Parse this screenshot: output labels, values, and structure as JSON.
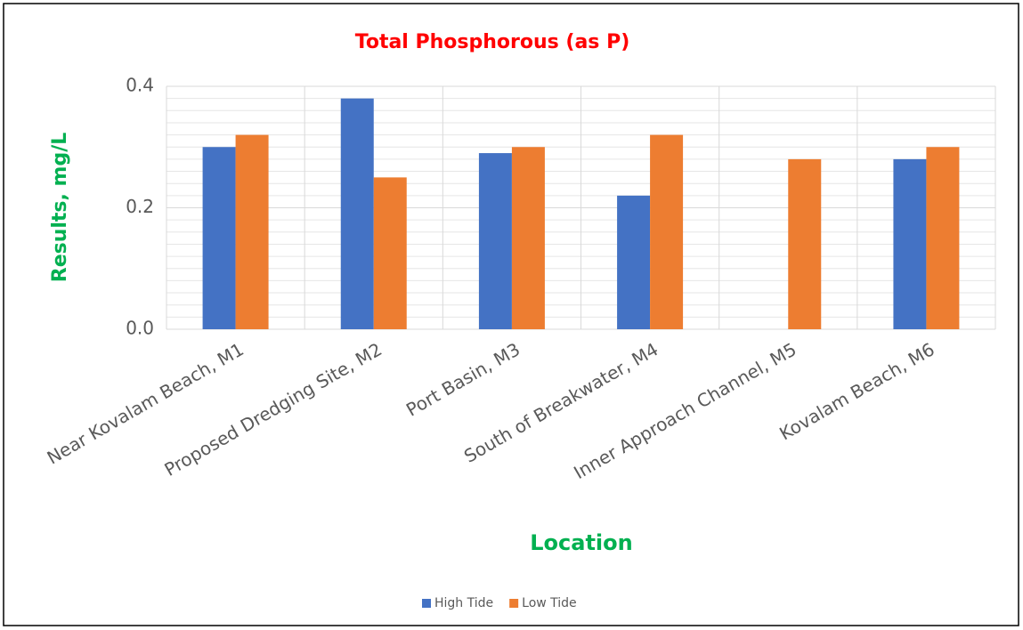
{
  "chart_data": {
    "type": "bar",
    "title": "Total Phosphorous (as P)",
    "x_label": "Location",
    "y_label": "Results, mg/L",
    "categories": [
      "Near Kovalam Beach, M1",
      "Proposed Dredging Site, M2",
      "Port Basin, M3",
      "South of Breakwater, M4",
      "Inner Approach Channel, M5",
      "Kovalam Beach, M6"
    ],
    "series": [
      {
        "name": "High Tide",
        "color": "#4472c4",
        "values": [
          0.3,
          0.38,
          0.29,
          0.22,
          null,
          0.28
        ]
      },
      {
        "name": "Low Tide",
        "color": "#ed7d31",
        "values": [
          0.32,
          0.25,
          0.3,
          0.32,
          0.28,
          0.3
        ]
      }
    ],
    "ylim": [
      0,
      0.4
    ],
    "yticks": [
      {
        "value": 0,
        "label": "0.0"
      },
      {
        "value": 0.2,
        "label": "0.2"
      },
      {
        "value": 0.4,
        "label": "0.4"
      }
    ],
    "grid": true,
    "minor_grid": true,
    "legend": "bottom"
  }
}
